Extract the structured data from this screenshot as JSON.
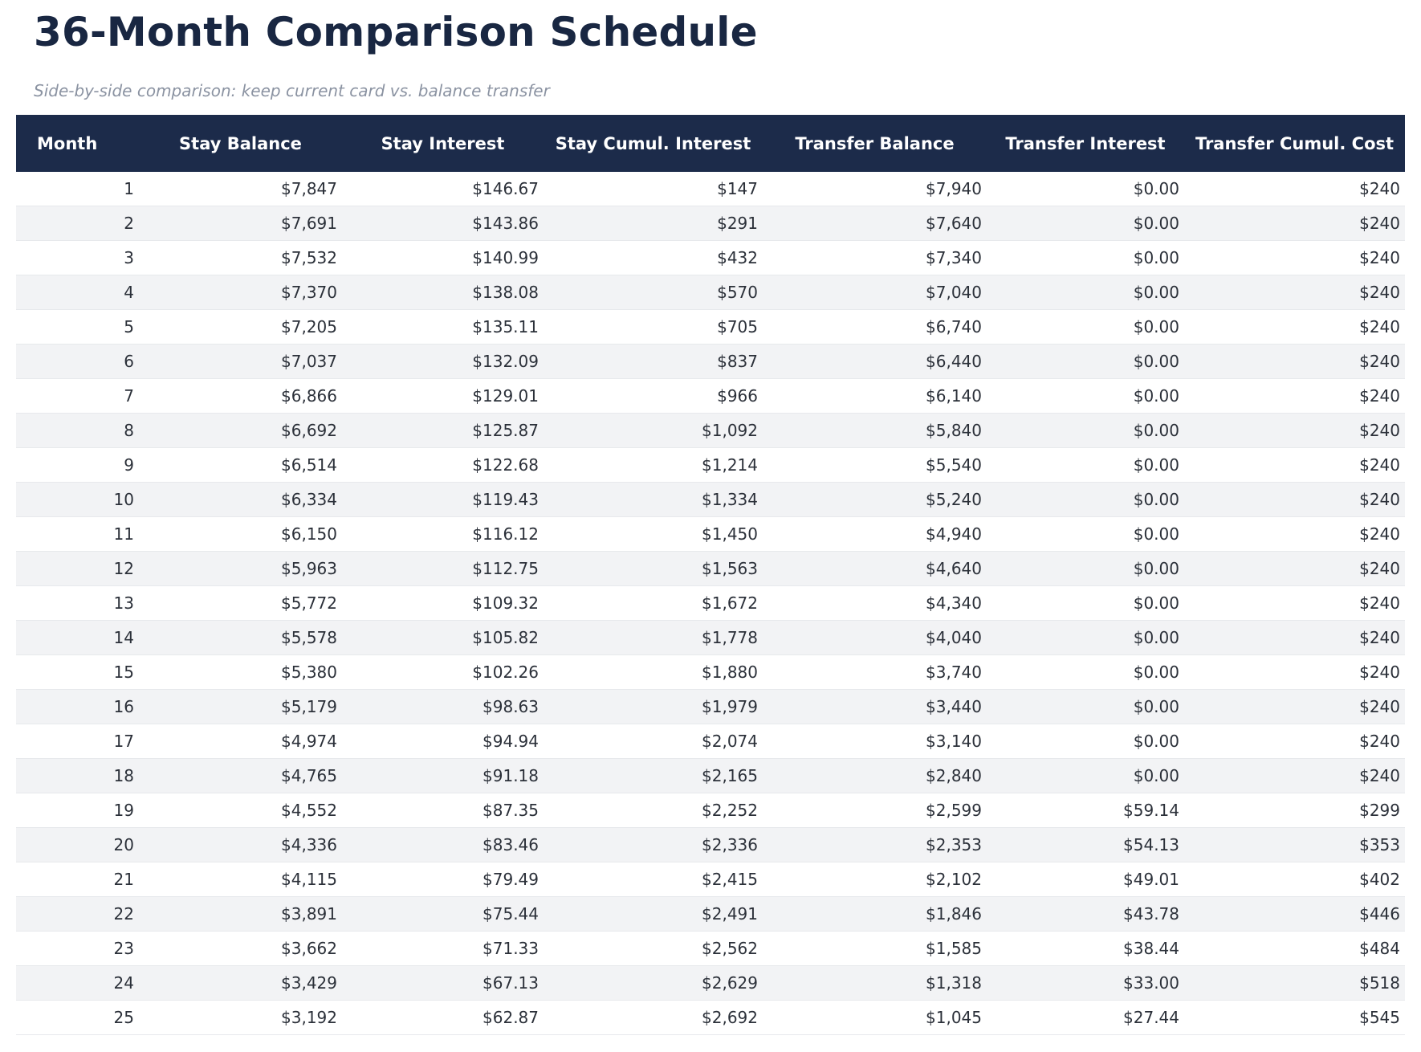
{
  "page": {
    "title": "36-Month Comparison Schedule",
    "subtitle": "Side-by-side comparison: keep current card vs. balance transfer"
  },
  "colors": {
    "header_bg": "#1c2b4a",
    "header_text": "#ffffff",
    "title_text": "#192742",
    "subtitle_text": "#8b93a2",
    "body_text": "#2b3039",
    "row_stripe": "#f2f3f5",
    "row_border": "#e7e9ec"
  },
  "chart_data": {
    "type": "table",
    "title": "36-Month Comparison Schedule",
    "subtitle": "Side-by-side comparison: keep current card vs. balance transfer",
    "columns": [
      "Month",
      "Stay Balance",
      "Stay Interest",
      "Stay Cumul. Interest",
      "Transfer Balance",
      "Transfer Interest",
      "Transfer Cumul. Cost"
    ],
    "rows": [
      [
        "1",
        "$7,847",
        "$146.67",
        "$147",
        "$7,940",
        "$0.00",
        "$240"
      ],
      [
        "2",
        "$7,691",
        "$143.86",
        "$291",
        "$7,640",
        "$0.00",
        "$240"
      ],
      [
        "3",
        "$7,532",
        "$140.99",
        "$432",
        "$7,340",
        "$0.00",
        "$240"
      ],
      [
        "4",
        "$7,370",
        "$138.08",
        "$570",
        "$7,040",
        "$0.00",
        "$240"
      ],
      [
        "5",
        "$7,205",
        "$135.11",
        "$705",
        "$6,740",
        "$0.00",
        "$240"
      ],
      [
        "6",
        "$7,037",
        "$132.09",
        "$837",
        "$6,440",
        "$0.00",
        "$240"
      ],
      [
        "7",
        "$6,866",
        "$129.01",
        "$966",
        "$6,140",
        "$0.00",
        "$240"
      ],
      [
        "8",
        "$6,692",
        "$125.87",
        "$1,092",
        "$5,840",
        "$0.00",
        "$240"
      ],
      [
        "9",
        "$6,514",
        "$122.68",
        "$1,214",
        "$5,540",
        "$0.00",
        "$240"
      ],
      [
        "10",
        "$6,334",
        "$119.43",
        "$1,334",
        "$5,240",
        "$0.00",
        "$240"
      ],
      [
        "11",
        "$6,150",
        "$116.12",
        "$1,450",
        "$4,940",
        "$0.00",
        "$240"
      ],
      [
        "12",
        "$5,963",
        "$112.75",
        "$1,563",
        "$4,640",
        "$0.00",
        "$240"
      ],
      [
        "13",
        "$5,772",
        "$109.32",
        "$1,672",
        "$4,340",
        "$0.00",
        "$240"
      ],
      [
        "14",
        "$5,578",
        "$105.82",
        "$1,778",
        "$4,040",
        "$0.00",
        "$240"
      ],
      [
        "15",
        "$5,380",
        "$102.26",
        "$1,880",
        "$3,740",
        "$0.00",
        "$240"
      ],
      [
        "16",
        "$5,179",
        "$98.63",
        "$1,979",
        "$3,440",
        "$0.00",
        "$240"
      ],
      [
        "17",
        "$4,974",
        "$94.94",
        "$2,074",
        "$3,140",
        "$0.00",
        "$240"
      ],
      [
        "18",
        "$4,765",
        "$91.18",
        "$2,165",
        "$2,840",
        "$0.00",
        "$240"
      ],
      [
        "19",
        "$4,552",
        "$87.35",
        "$2,252",
        "$2,599",
        "$59.14",
        "$299"
      ],
      [
        "20",
        "$4,336",
        "$83.46",
        "$2,336",
        "$2,353",
        "$54.13",
        "$353"
      ],
      [
        "21",
        "$4,115",
        "$79.49",
        "$2,415",
        "$2,102",
        "$49.01",
        "$402"
      ],
      [
        "22",
        "$3,891",
        "$75.44",
        "$2,491",
        "$1,846",
        "$43.78",
        "$446"
      ],
      [
        "23",
        "$3,662",
        "$71.33",
        "$2,562",
        "$1,585",
        "$38.44",
        "$484"
      ],
      [
        "24",
        "$3,429",
        "$67.13",
        "$2,629",
        "$1,318",
        "$33.00",
        "$518"
      ],
      [
        "25",
        "$3,192",
        "$62.87",
        "$2,692",
        "$1,045",
        "$27.44",
        "$545"
      ]
    ]
  }
}
